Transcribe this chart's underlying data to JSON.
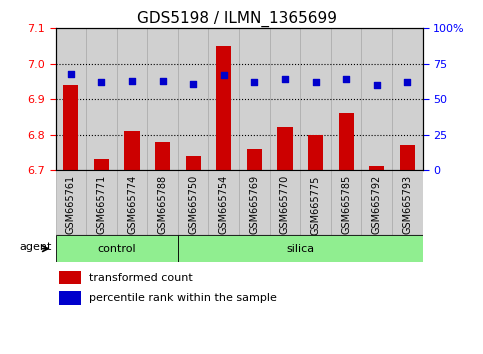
{
  "title": "GDS5198 / ILMN_1365699",
  "samples": [
    "GSM665761",
    "GSM665771",
    "GSM665774",
    "GSM665788",
    "GSM665750",
    "GSM665754",
    "GSM665769",
    "GSM665770",
    "GSM665775",
    "GSM665785",
    "GSM665792",
    "GSM665793"
  ],
  "red_values": [
    6.94,
    6.73,
    6.81,
    6.78,
    6.74,
    7.05,
    6.76,
    6.82,
    6.8,
    6.86,
    6.71,
    6.77
  ],
  "blue_values": [
    68,
    62,
    63,
    63,
    61,
    67,
    62,
    64,
    62,
    64,
    60,
    62
  ],
  "ylim_left": [
    6.7,
    7.1
  ],
  "ylim_right": [
    0,
    100
  ],
  "yticks_left": [
    6.7,
    6.8,
    6.9,
    7.0,
    7.1
  ],
  "yticks_right": [
    0,
    25,
    50,
    75,
    100
  ],
  "ytick_labels_right": [
    "0",
    "25",
    "50",
    "75",
    "100%"
  ],
  "bar_color": "#CC0000",
  "dot_color": "#0000CC",
  "bar_bottom": 6.7,
  "control_count": 4,
  "silica_count": 8,
  "group_color": "#90EE90",
  "agent_label": "agent",
  "legend_bar_label": "transformed count",
  "legend_dot_label": "percentile rank within the sample",
  "title_fontsize": 11,
  "tick_fontsize": 8,
  "xlabel_fontsize": 7,
  "group_fontsize": 8,
  "col_bg_color": "#d0d0d0",
  "col_edge_color": "#aaaaaa",
  "grid_lines": [
    6.8,
    6.9,
    7.0
  ],
  "grid_color": "black",
  "grid_style": ":"
}
